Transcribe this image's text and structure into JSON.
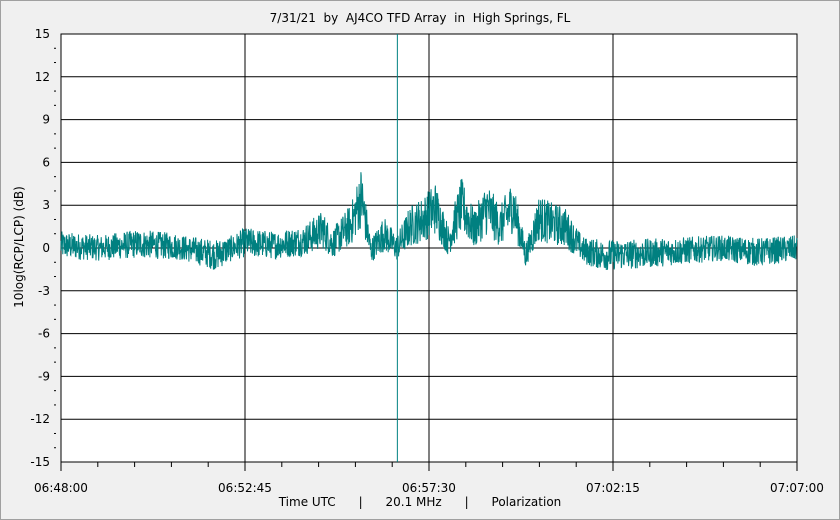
{
  "chart_data": {
    "type": "line",
    "title": "7/31/21  by  AJ4CO TFD Array  in  High Springs, FL",
    "ylabel": "10log(RCP/LCP) (dB)",
    "footer": "Time UTC      |      20.1 MHz      |      Polarization",
    "ylim": [
      -15,
      15
    ],
    "yticks": [
      "15",
      "12",
      "9",
      "6",
      "3",
      "0",
      "-3",
      "-6",
      "-9",
      "-12",
      "-15"
    ],
    "xlim": [
      "06:48:00",
      "07:07:00"
    ],
    "xticks": [
      "06:48:00",
      "06:52:45",
      "06:57:30",
      "07:02:15",
      "07:07:00"
    ],
    "grid": true,
    "cursor_time": "06:56:41",
    "series": [
      {
        "color": "#008080",
        "x": [
          "06:48:00",
          "06:49:00",
          "06:50:00",
          "06:51:00",
          "06:52:00",
          "06:52:45",
          "06:53:30",
          "06:54:15",
          "06:54:45",
          "06:55:00",
          "06:55:30",
          "06:55:45",
          "06:56:00",
          "06:56:20",
          "06:56:40",
          "06:57:00",
          "06:57:20",
          "06:57:40",
          "06:58:00",
          "06:58:20",
          "06:58:40",
          "06:59:00",
          "06:59:20",
          "06:59:40",
          "07:00:00",
          "07:00:20",
          "07:00:40",
          "07:01:00",
          "07:01:30",
          "07:02:00",
          "07:03:00",
          "07:04:00",
          "07:05:00",
          "07:06:00",
          "07:07:00"
        ],
        "values": [
          0.2,
          0,
          0.3,
          0.1,
          -0.5,
          0.4,
          0.2,
          0.5,
          1.3,
          0.3,
          1.7,
          3.6,
          -0.2,
          1,
          0,
          1.5,
          2,
          2.8,
          0.5,
          3,
          1.3,
          2.8,
          1.5,
          3,
          -0.5,
          2.1,
          1.7,
          1.5,
          -0.2,
          -0.5,
          -0.4,
          -0.2,
          0,
          -0.3,
          0
        ]
      }
    ]
  }
}
